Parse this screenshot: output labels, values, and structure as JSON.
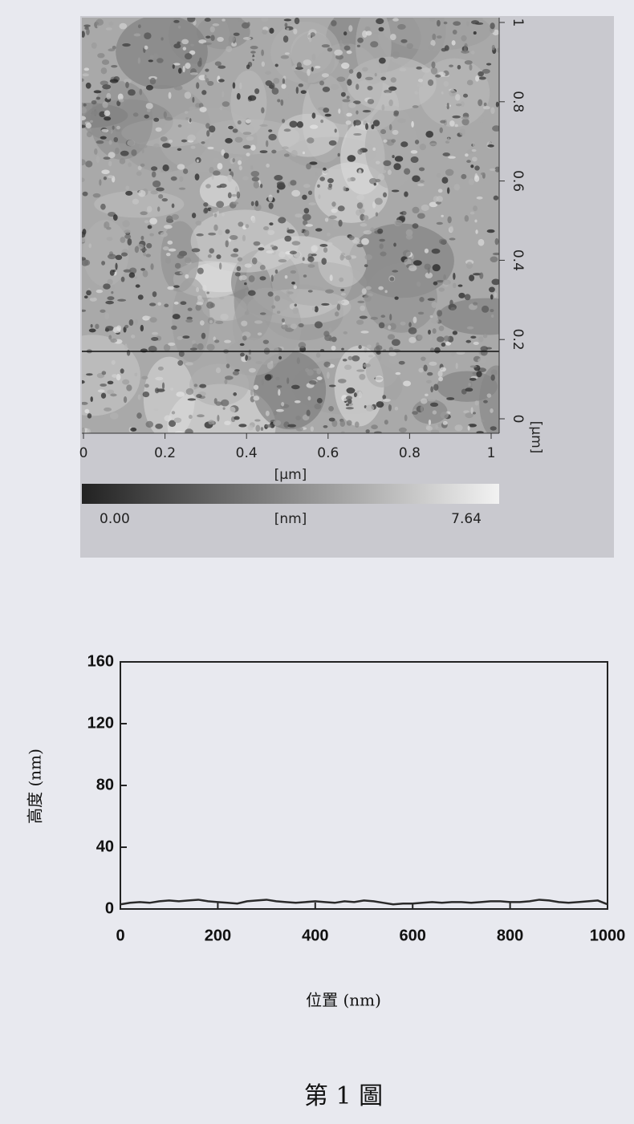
{
  "chart_data": [
    {
      "type": "image",
      "xlabel": "[μm]",
      "ylabel": "[μm]",
      "xlim": [
        0,
        1
      ],
      "ylim": [
        0,
        1
      ],
      "xticks": [
        0,
        0.2,
        0.4,
        0.6,
        0.8,
        1
      ],
      "yticks": [
        0,
        0.2,
        0.4,
        0.6,
        0.8,
        1
      ],
      "cursor_y": 0.17,
      "colorbar": {
        "label": "[nm]",
        "ticks": [
          {
            "value": 0,
            "label": "0.00"
          },
          7.64
        ]
      }
    },
    {
      "type": "line",
      "xlabel": "位置 (nm)",
      "ylabel": "高度 (nm)",
      "x": [
        0,
        20,
        40,
        60,
        80,
        100,
        120,
        140,
        160,
        180,
        200,
        220,
        240,
        260,
        280,
        300,
        320,
        340,
        360,
        380,
        400,
        420,
        440,
        460,
        480,
        500,
        520,
        540,
        560,
        580,
        600,
        620,
        640,
        660,
        680,
        700,
        720,
        740,
        760,
        780,
        800,
        820,
        840,
        860,
        880,
        900,
        920,
        940,
        960,
        980,
        1000
      ],
      "values": [
        3,
        4,
        4.5,
        4,
        5,
        5.5,
        5,
        5.5,
        6,
        5,
        4.5,
        4,
        3.5,
        5,
        5.5,
        6,
        5,
        4.5,
        4,
        4.5,
        5,
        4.5,
        4,
        5,
        4.5,
        5.5,
        5,
        4,
        3,
        3.5,
        3.5,
        4,
        4.5,
        4,
        4.5,
        4.5,
        4,
        4.5,
        5,
        5,
        4.5,
        4.5,
        5,
        6,
        5.5,
        4.5,
        4,
        4.5,
        5,
        5.5,
        3
      ],
      "color": "#2a2a2a",
      "xlim": [
        0,
        1000
      ],
      "ylim": [
        0,
        160
      ],
      "xticks": [
        0,
        200,
        400,
        600,
        800,
        1000
      ],
      "yticks": [
        0,
        40,
        80,
        120,
        160
      ]
    }
  ],
  "caption": "第 1 圖"
}
